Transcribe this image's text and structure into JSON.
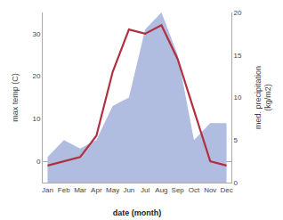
{
  "chart_data": {
    "type": "line",
    "categories": [
      "Jan",
      "Feb",
      "Mar",
      "Apr",
      "May",
      "Jun",
      "Jul",
      "Aug",
      "Sep",
      "Oct",
      "Nov",
      "Dec"
    ],
    "xlabel": "date (month)",
    "ylabel": "max temp (C)",
    "y2label": "med. precipitation\n(kg/m2)",
    "series": [
      {
        "type": "area",
        "axis": "y2",
        "color": "#b0bce0",
        "values": [
          3,
          5,
          4,
          5,
          9,
          10,
          18,
          20,
          15,
          5,
          7,
          7
        ]
      },
      {
        "type": "line",
        "axis": "y",
        "color": "#b03040",
        "values": [
          -1,
          0,
          1,
          6,
          21,
          31,
          30,
          32,
          24,
          12,
          0,
          -1
        ]
      }
    ],
    "ylim": [
      -5,
      35
    ],
    "yticks": [
      0,
      10,
      20,
      30
    ],
    "y2lim": [
      0,
      20
    ],
    "y2ticks": [
      0,
      5,
      10,
      15,
      20
    ],
    "grid": false
  }
}
